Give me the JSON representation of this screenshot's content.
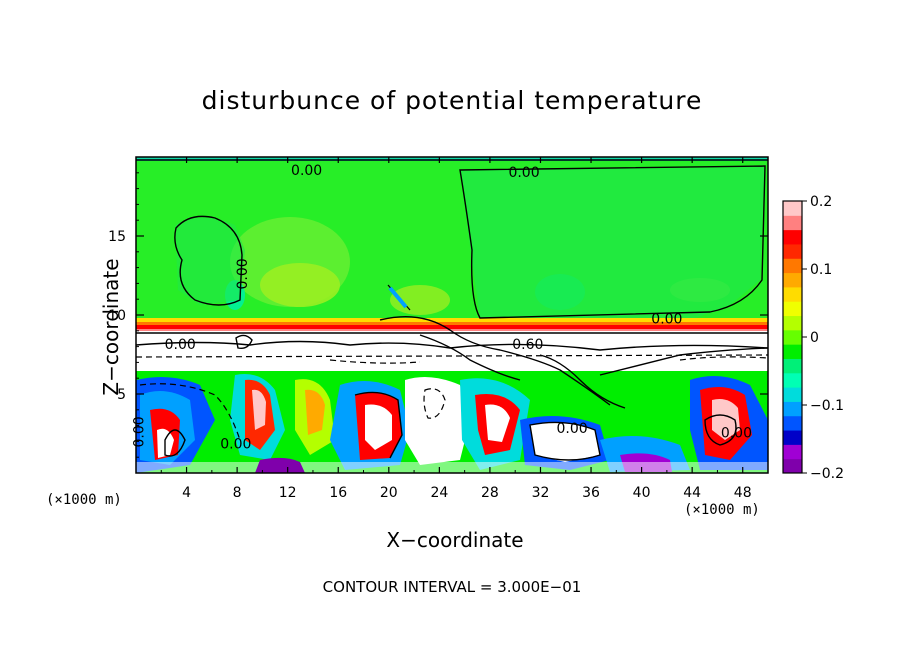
{
  "chart_data": {
    "type": "heatmap",
    "title": "disturbunce of potential temperature",
    "xlabel": "X−coordinate",
    "ylabel": "Z−coordinate",
    "x_unit": "(×1000 m)",
    "footer": "CONTOUR INTERVAL = 3.000E−01",
    "xlim": [
      0,
      50
    ],
    "ylim": [
      0,
      20
    ],
    "x_ticks": [
      4,
      8,
      12,
      16,
      20,
      24,
      28,
      32,
      36,
      40,
      44,
      48
    ],
    "y_ticks": [
      5,
      10,
      15
    ],
    "colorbar": {
      "vmin": -0.2,
      "vmax": 0.2,
      "tick_labels": [
        "0.2",
        "0.1",
        "0",
        "−0.1",
        "−0.2"
      ],
      "tick_values": [
        0.2,
        0.1,
        0,
        -0.1,
        -0.2
      ],
      "colors": [
        "#7f00ab",
        "#a000d4",
        "#0000c8",
        "#0055ff",
        "#00a0ff",
        "#00dcdc",
        "#00ffb4",
        "#00f078",
        "#00ee00",
        "#66ff00",
        "#b4ff00",
        "#f0ff00",
        "#ffdc00",
        "#ffaa00",
        "#ff7800",
        "#ff2800",
        "#ff0000",
        "#ff8080",
        "#ffc8c8"
      ]
    },
    "contour_labels": [
      {
        "text": "0.00",
        "x": 13.5,
        "z": 19.1
      },
      {
        "text": "0.00",
        "x": 30.7,
        "z": 19.0
      },
      {
        "text": "0.00",
        "x": 42.0,
        "z": 9.7
      },
      {
        "text": "0.00",
        "x": 3.5,
        "z": 8.1
      },
      {
        "text": "0.60",
        "x": 31.0,
        "z": 8.1
      },
      {
        "text": "0.00",
        "x": 34.5,
        "z": 2.8
      },
      {
        "text": "0.00",
        "x": 7.9,
        "z": 1.8
      },
      {
        "text": "0.00",
        "x": 47.5,
        "z": 2.5
      }
    ],
    "vertical_contour_labels": [
      {
        "text": "0.00",
        "x": 8.8,
        "z": 12.6
      },
      {
        "text": "0.00",
        "x": 0.6,
        "z": 2.6
      }
    ]
  }
}
